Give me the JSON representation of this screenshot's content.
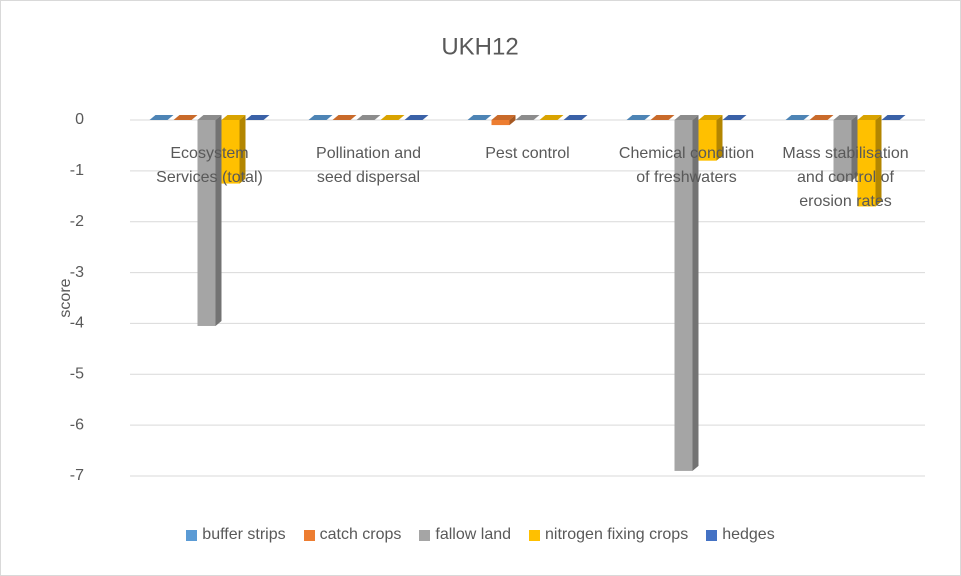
{
  "chart_data": {
    "type": "bar",
    "title": "UKH12",
    "y_label": "score",
    "categories": [
      "Ecosystem Services (total)",
      "Pollination and seed dispersal",
      "Pest control",
      "Chemical condition of freshwaters",
      "Mass stabilisation and control of erosion rates"
    ],
    "series": [
      {
        "name": "buffer strips",
        "color": "#5b9bd5",
        "values": [
          0,
          0,
          0,
          0,
          0
        ]
      },
      {
        "name": "catch crops",
        "color": "#ed7d31",
        "values": [
          0,
          0,
          -0.1,
          0,
          0
        ]
      },
      {
        "name": "fallow land",
        "color": "#a5a5a5",
        "values": [
          -4.05,
          0,
          0,
          -6.9,
          -1.2
        ]
      },
      {
        "name": "nitrogen fixing crops",
        "color": "#ffc000",
        "values": [
          -1.25,
          0,
          0,
          -0.8,
          -1.7
        ]
      },
      {
        "name": "hedges",
        "color": "#4472c4",
        "values": [
          0,
          0,
          0,
          0,
          0
        ]
      }
    ],
    "ylim": [
      -7,
      0
    ],
    "yticks": [
      0,
      -1,
      -2,
      -3,
      -4,
      -5,
      -6,
      -7
    ],
    "grid": true
  }
}
